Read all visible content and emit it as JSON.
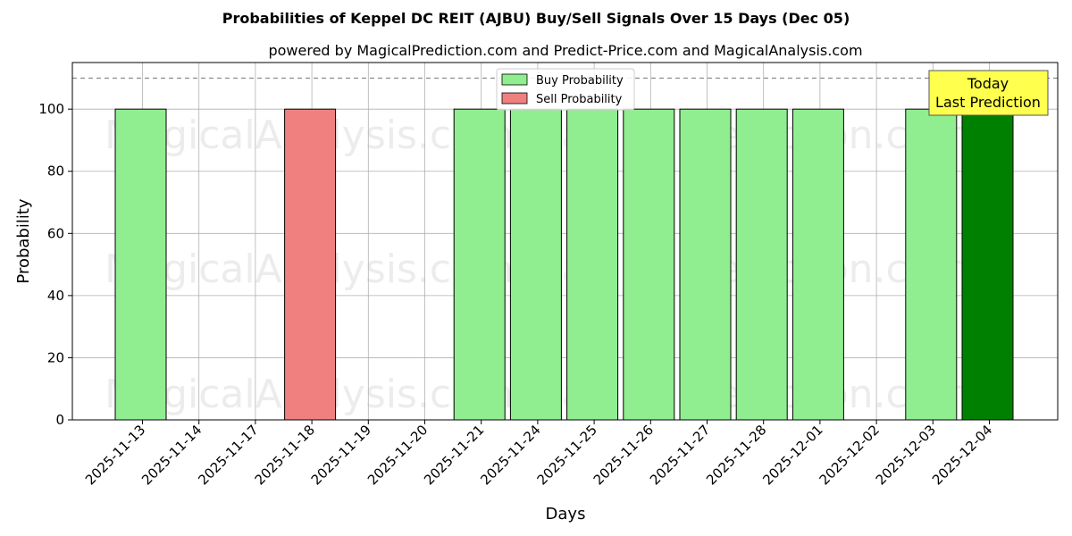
{
  "chart_data": {
    "type": "bar",
    "title": "Probabilities of Keppel DC REIT (AJBU) Buy/Sell Signals Over 15 Days (Dec 05)",
    "subtitle": "powered by MagicalPrediction.com and Predict-Price.com and MagicalAnalysis.com",
    "xlabel": "Days",
    "ylabel": "Probability",
    "ylim": [
      0,
      115
    ],
    "yticks": [
      0,
      20,
      40,
      60,
      80,
      100
    ],
    "grid": true,
    "legend_placement": "top-center",
    "reference_line": {
      "y": 110,
      "style": "dashed"
    },
    "categories": [
      "2025-11-13",
      "2025-11-14",
      "2025-11-17",
      "2025-11-18",
      "2025-11-19",
      "2025-11-20",
      "2025-11-21",
      "2025-11-24",
      "2025-11-25",
      "2025-11-26",
      "2025-11-27",
      "2025-11-28",
      "2025-12-01",
      "2025-12-02",
      "2025-12-03",
      "2025-12-04"
    ],
    "series": [
      {
        "name": "Buy Probability",
        "color": "#90ee90",
        "values": [
          100,
          0,
          0,
          0,
          0,
          0,
          100,
          100,
          100,
          100,
          100,
          100,
          100,
          0,
          100,
          100
        ]
      },
      {
        "name": "Sell Probability",
        "color": "#f08080",
        "values": [
          0,
          0,
          0,
          100,
          0,
          0,
          0,
          0,
          0,
          0,
          0,
          0,
          0,
          0,
          0,
          0
        ]
      }
    ],
    "highlight": {
      "category": "2025-12-04",
      "color": "#008000"
    },
    "annotation": {
      "lines": [
        "Today",
        "Last Prediction"
      ],
      "box_color": "#ffff4d"
    },
    "watermarks": [
      "MagicalAnalysis.com",
      "MagicalPrediction.com"
    ]
  }
}
